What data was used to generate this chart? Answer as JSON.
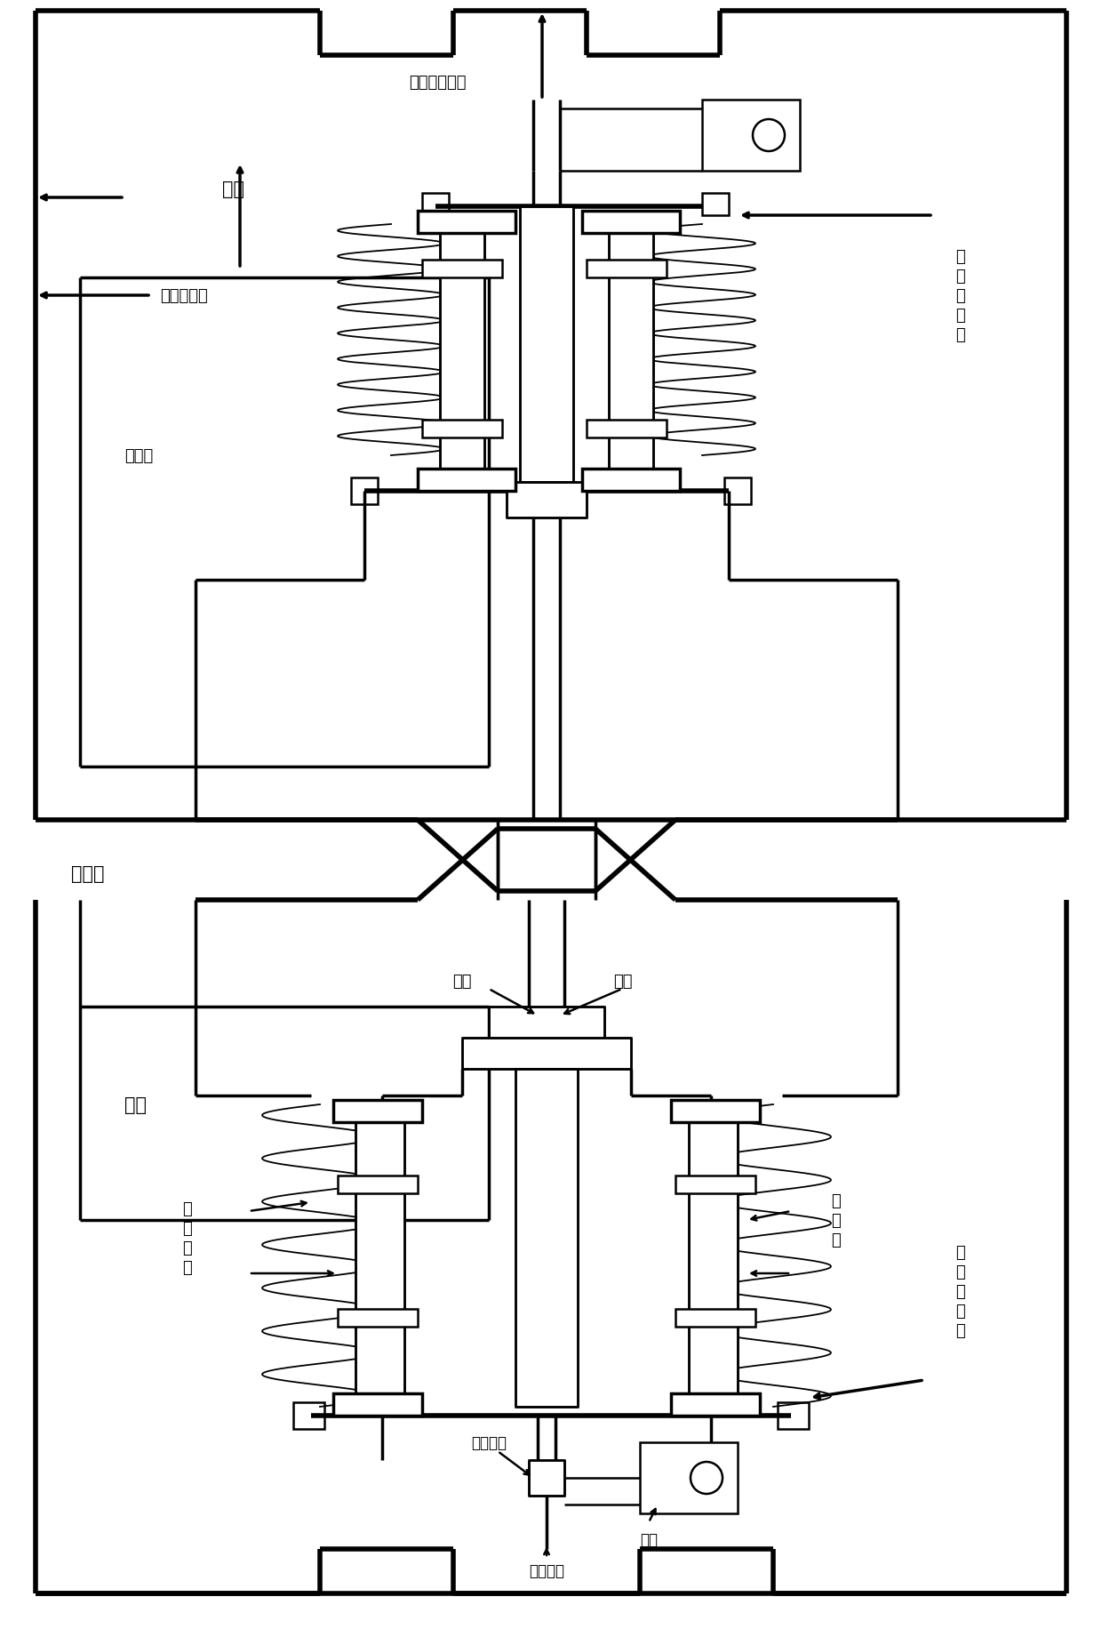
{
  "bg_color": "#ffffff",
  "line_color": "#000000",
  "fig_width": 12.4,
  "fig_height": 18.33,
  "lw": 1.8,
  "lw_med": 2.5,
  "lw_thick": 4.0,
  "lw_thin": 1.3,
  "labels": {
    "leng_ping": "冷屏",
    "heng_wen_qi": "恒温器外筒",
    "ye_he_cao": "液氦槽",
    "tiao_xie_wei_hu": "调谐器维护口",
    "cha_gan_tiao_top": "插\n杆\n调\n谐\n器",
    "chao_dao_qiang": "超导腔",
    "ye_he_bot": "液氦",
    "cha_gan": "插杆",
    "ye_he2": "液氦",
    "zhi_xian": "直\n线\n导\n轨",
    "bo_wen_guan": "波\n纹\n管",
    "cha_gan_tiao_bot": "插\n杆\n调\n谐\n器",
    "ya_dian": "压电陶瓷",
    "jian_su": "减速杆杆",
    "dian_ji": "电机"
  },
  "font_size": 13,
  "font_size_big": 15
}
